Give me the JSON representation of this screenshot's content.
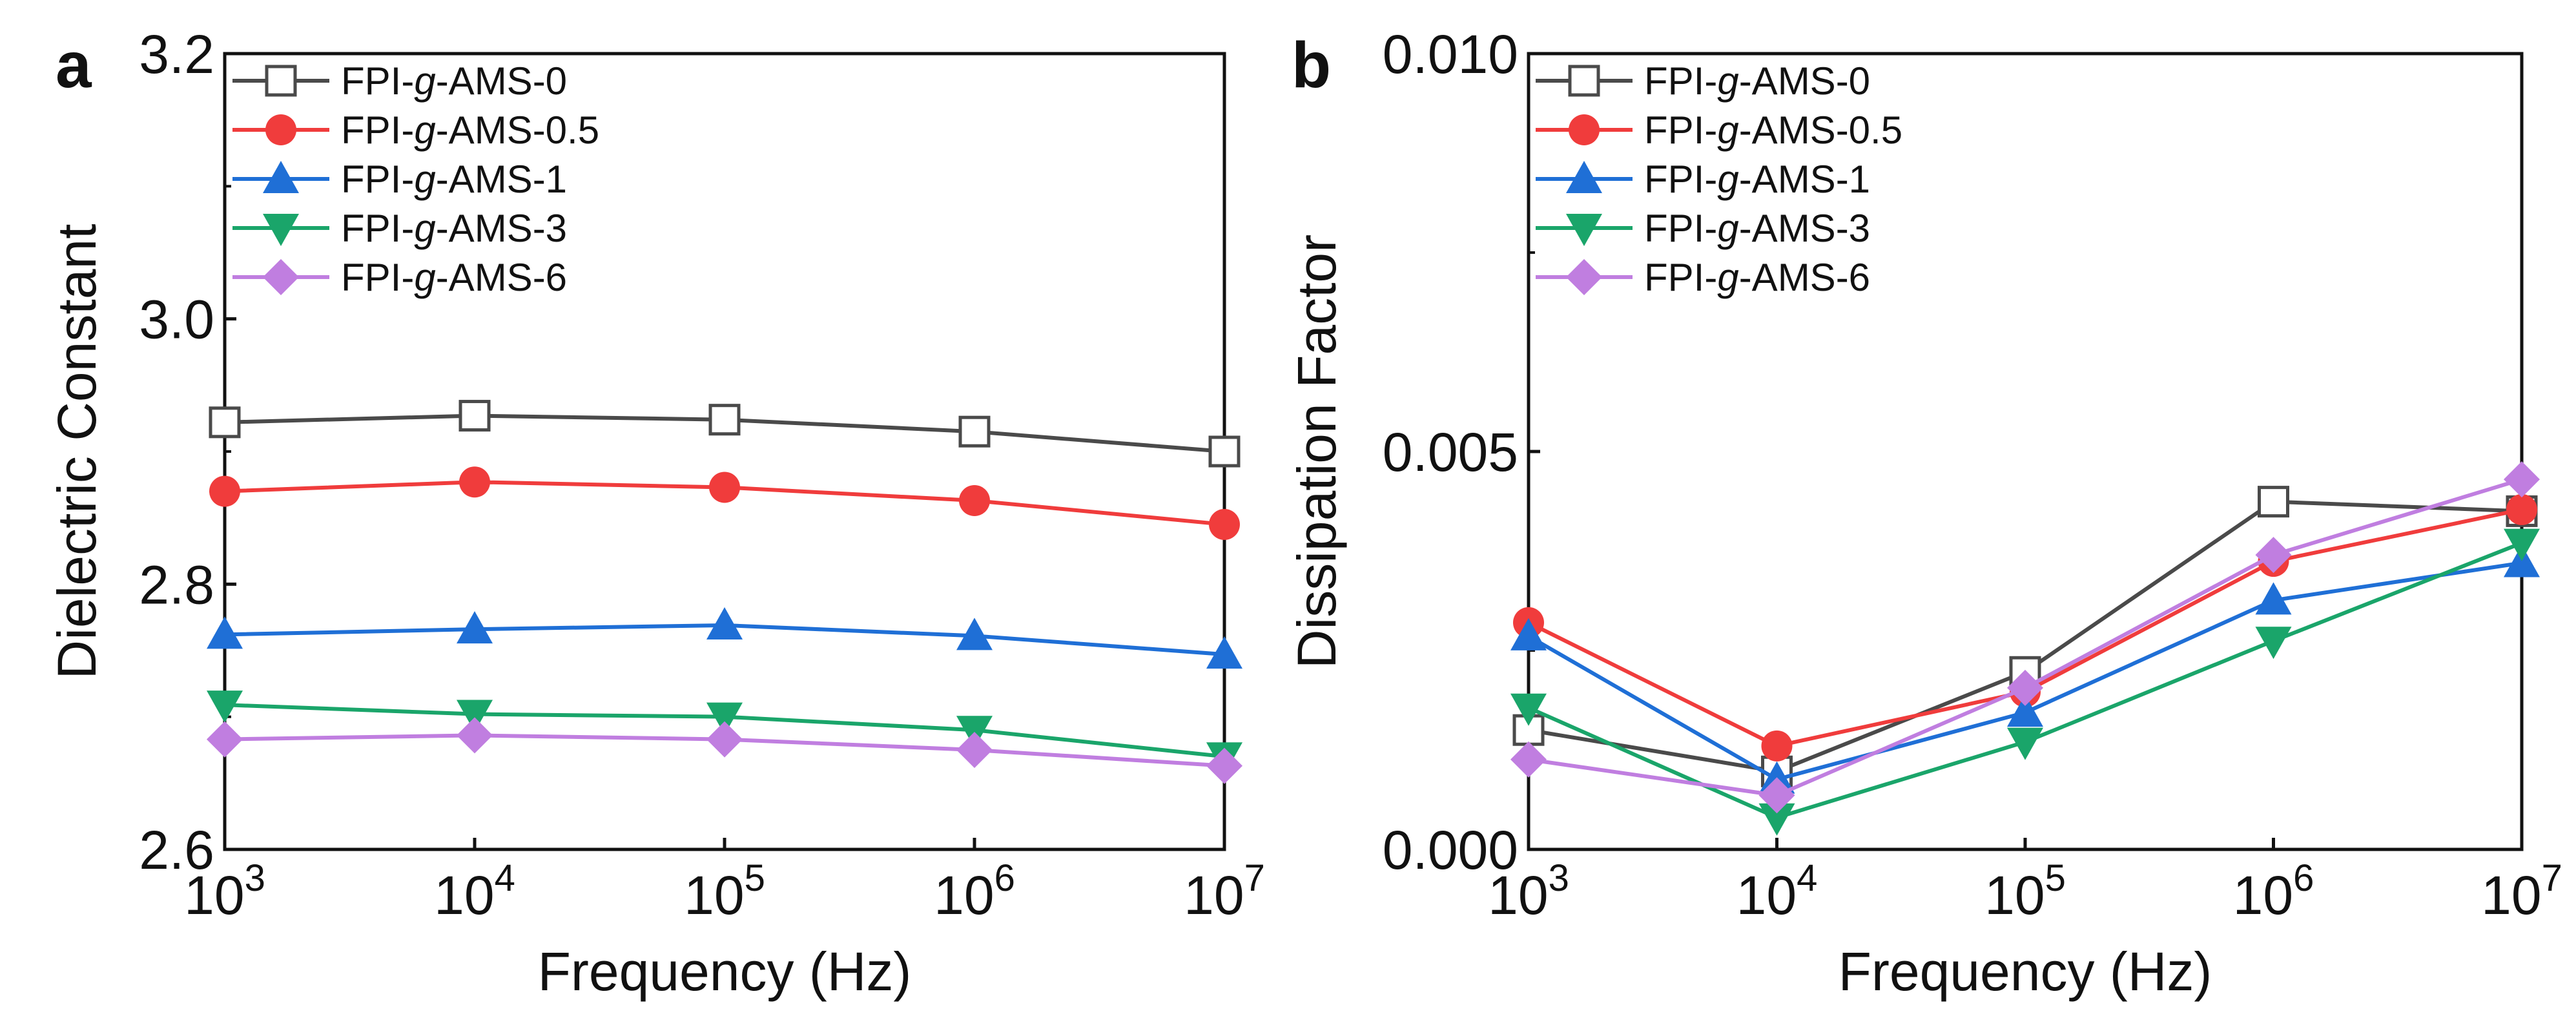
{
  "x_ticks": [
    {
      "base": "10",
      "exp": "3"
    },
    {
      "base": "10",
      "exp": "4"
    },
    {
      "base": "10",
      "exp": "5"
    },
    {
      "base": "10",
      "exp": "6"
    },
    {
      "base": "10",
      "exp": "7"
    }
  ],
  "chart_data": [
    {
      "type": "line",
      "panel": "a",
      "xlabel": "Frequency (Hz)",
      "ylabel": "Dielectric Constant",
      "x": [
        1000,
        10000,
        100000,
        1000000,
        10000000
      ],
      "xscale": "log",
      "xlim": [
        1000,
        10000000
      ],
      "ylim": [
        2.6,
        3.2
      ],
      "yticks": [
        2.6,
        2.8,
        3.0,
        3.2
      ],
      "ytick_labels": [
        "2.6",
        "2.8",
        "3.0",
        "3.2"
      ],
      "legend_position": "top-left",
      "series": [
        {
          "name": "FPI-g-AMS-0",
          "prefix": "FPI-",
          "italic": "g",
          "suffix": "-AMS-0",
          "color": "#4a4a4a",
          "marker": "square-open",
          "values": [
            2.922,
            2.927,
            2.924,
            2.915,
            2.9
          ]
        },
        {
          "name": "FPI-g-AMS-0.5",
          "prefix": "FPI-",
          "italic": "g",
          "suffix": "-AMS-0.5",
          "color": "#f03c3c",
          "marker": "circle",
          "values": [
            2.87,
            2.877,
            2.873,
            2.863,
            2.845
          ]
        },
        {
          "name": "FPI-g-AMS-1",
          "prefix": "FPI-",
          "italic": "g",
          "suffix": "-AMS-1",
          "color": "#1f6fd6",
          "marker": "triangle-up",
          "values": [
            2.762,
            2.766,
            2.769,
            2.761,
            2.747
          ]
        },
        {
          "name": "FPI-g-AMS-3",
          "prefix": "FPI-",
          "italic": "g",
          "suffix": "-AMS-3",
          "color": "#1aa56a",
          "marker": "triangle-down",
          "values": [
            2.709,
            2.702,
            2.7,
            2.69,
            2.67
          ]
        },
        {
          "name": "FPI-g-AMS-6",
          "prefix": "FPI-",
          "italic": "g",
          "suffix": "-AMS-6",
          "color": "#c07ee0",
          "marker": "diamond",
          "values": [
            2.683,
            2.686,
            2.683,
            2.675,
            2.663
          ]
        }
      ]
    },
    {
      "type": "line",
      "panel": "b",
      "xlabel": "Frequency (Hz)",
      "ylabel": "Dissipation Factor",
      "x": [
        1000,
        10000,
        100000,
        1000000,
        10000000
      ],
      "xscale": "log",
      "xlim": [
        1000,
        10000000
      ],
      "ylim": [
        0.0,
        0.01
      ],
      "yticks": [
        0.0,
        0.005,
        0.01
      ],
      "ytick_labels": [
        "0.000",
        "0.005",
        "0.010"
      ],
      "legend_position": "top-left",
      "series": [
        {
          "name": "FPI-g-AMS-0",
          "prefix": "FPI-",
          "italic": "g",
          "suffix": "-AMS-0",
          "color": "#4a4a4a",
          "marker": "square-open",
          "values": [
            0.0015,
            0.00098,
            0.00223,
            0.00437,
            0.00425
          ]
        },
        {
          "name": "FPI-g-AMS-0.5",
          "prefix": "FPI-",
          "italic": "g",
          "suffix": "-AMS-0.5",
          "color": "#f03c3c",
          "marker": "circle",
          "values": [
            0.00285,
            0.0013,
            0.00198,
            0.00362,
            0.00427
          ]
        },
        {
          "name": "FPI-g-AMS-1",
          "prefix": "FPI-",
          "italic": "g",
          "suffix": "-AMS-1",
          "color": "#1f6fd6",
          "marker": "triangle-up",
          "values": [
            0.00268,
            0.00088,
            0.00172,
            0.00313,
            0.0036
          ]
        },
        {
          "name": "FPI-g-AMS-3",
          "prefix": "FPI-",
          "italic": "g",
          "suffix": "-AMS-3",
          "color": "#1aa56a",
          "marker": "triangle-down",
          "values": [
            0.00178,
            0.0004,
            0.00135,
            0.00262,
            0.00385
          ]
        },
        {
          "name": "FPI-g-AMS-6",
          "prefix": "FPI-",
          "italic": "g",
          "suffix": "-AMS-6",
          "color": "#c07ee0",
          "marker": "diamond",
          "values": [
            0.00113,
            0.00068,
            0.00203,
            0.0037,
            0.00465
          ]
        }
      ]
    }
  ]
}
